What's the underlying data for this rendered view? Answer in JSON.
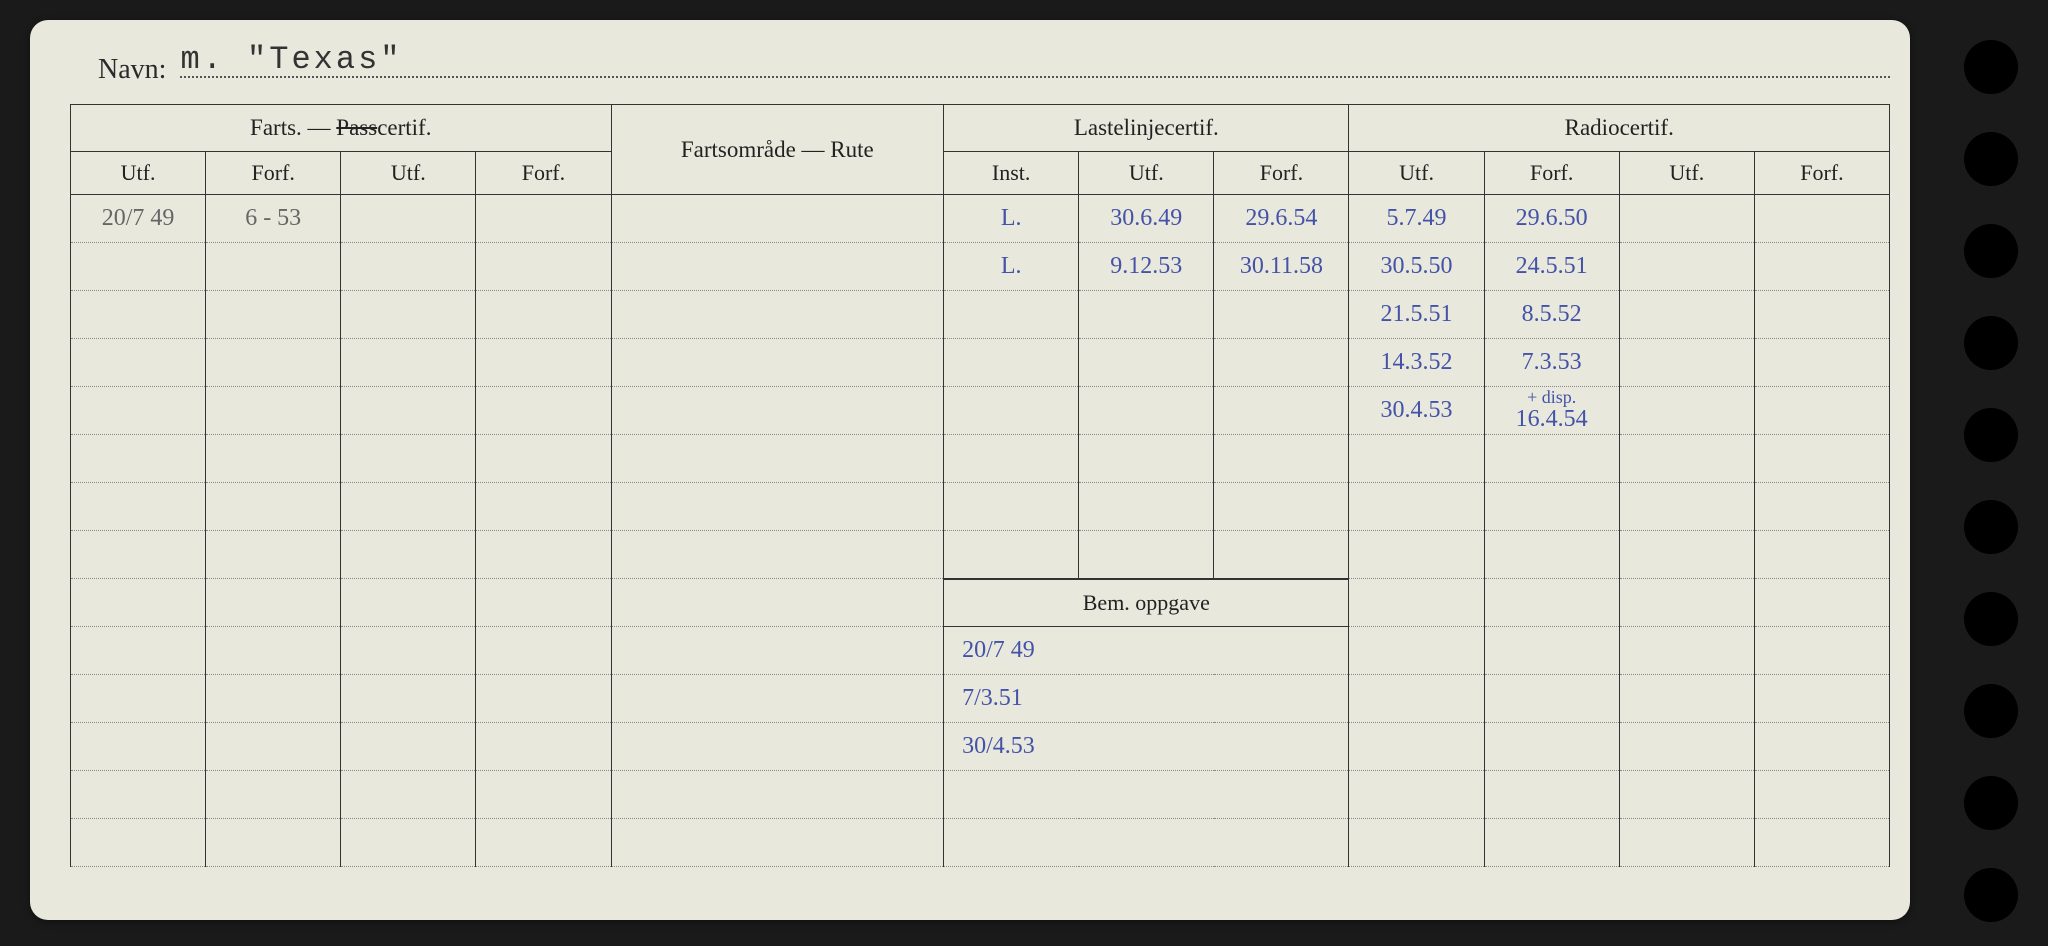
{
  "navn_label": "Navn:",
  "navn_value": "m. \"Texas\"",
  "headers": {
    "farts": "Farts. — Passcertif.",
    "rute": "Fartsområde — Rute",
    "laste": "Lastelinjecertif.",
    "radio": "Radiocertif.",
    "utf": "Utf.",
    "forf": "Forf.",
    "inst": "Inst.",
    "bem": "Bem. oppgave"
  },
  "rows": [
    {
      "f_utf": "20/7 49",
      "f_forf": "6 - 53",
      "l_inst": "L.",
      "l_utf": "30.6.49",
      "l_forf": "29.6.54",
      "r_utf": "5.7.49",
      "r_forf": "29.6.50"
    },
    {
      "l_inst": "L.",
      "l_utf": "9.12.53",
      "l_forf": "30.11.58",
      "r_utf": "30.5.50",
      "r_forf": "24.5.51"
    },
    {
      "r_utf": "21.5.51",
      "r_forf": "8.5.52"
    },
    {
      "r_utf": "14.3.52",
      "r_forf": "7.3.53"
    },
    {
      "r_utf": "30.4.53",
      "r_forf": "+ disp. 16.4.54"
    },
    {},
    {},
    {}
  ],
  "bem_rows": [
    "20/7 49",
    "7/3.51",
    "30/4.53",
    "",
    ""
  ],
  "colors": {
    "card_bg": "#e8e8dc",
    "ink": "#2a2a2a",
    "hand_blue": "#4452a8",
    "hand_grey": "#666666",
    "border": "#333333",
    "dotted": "#888888"
  }
}
